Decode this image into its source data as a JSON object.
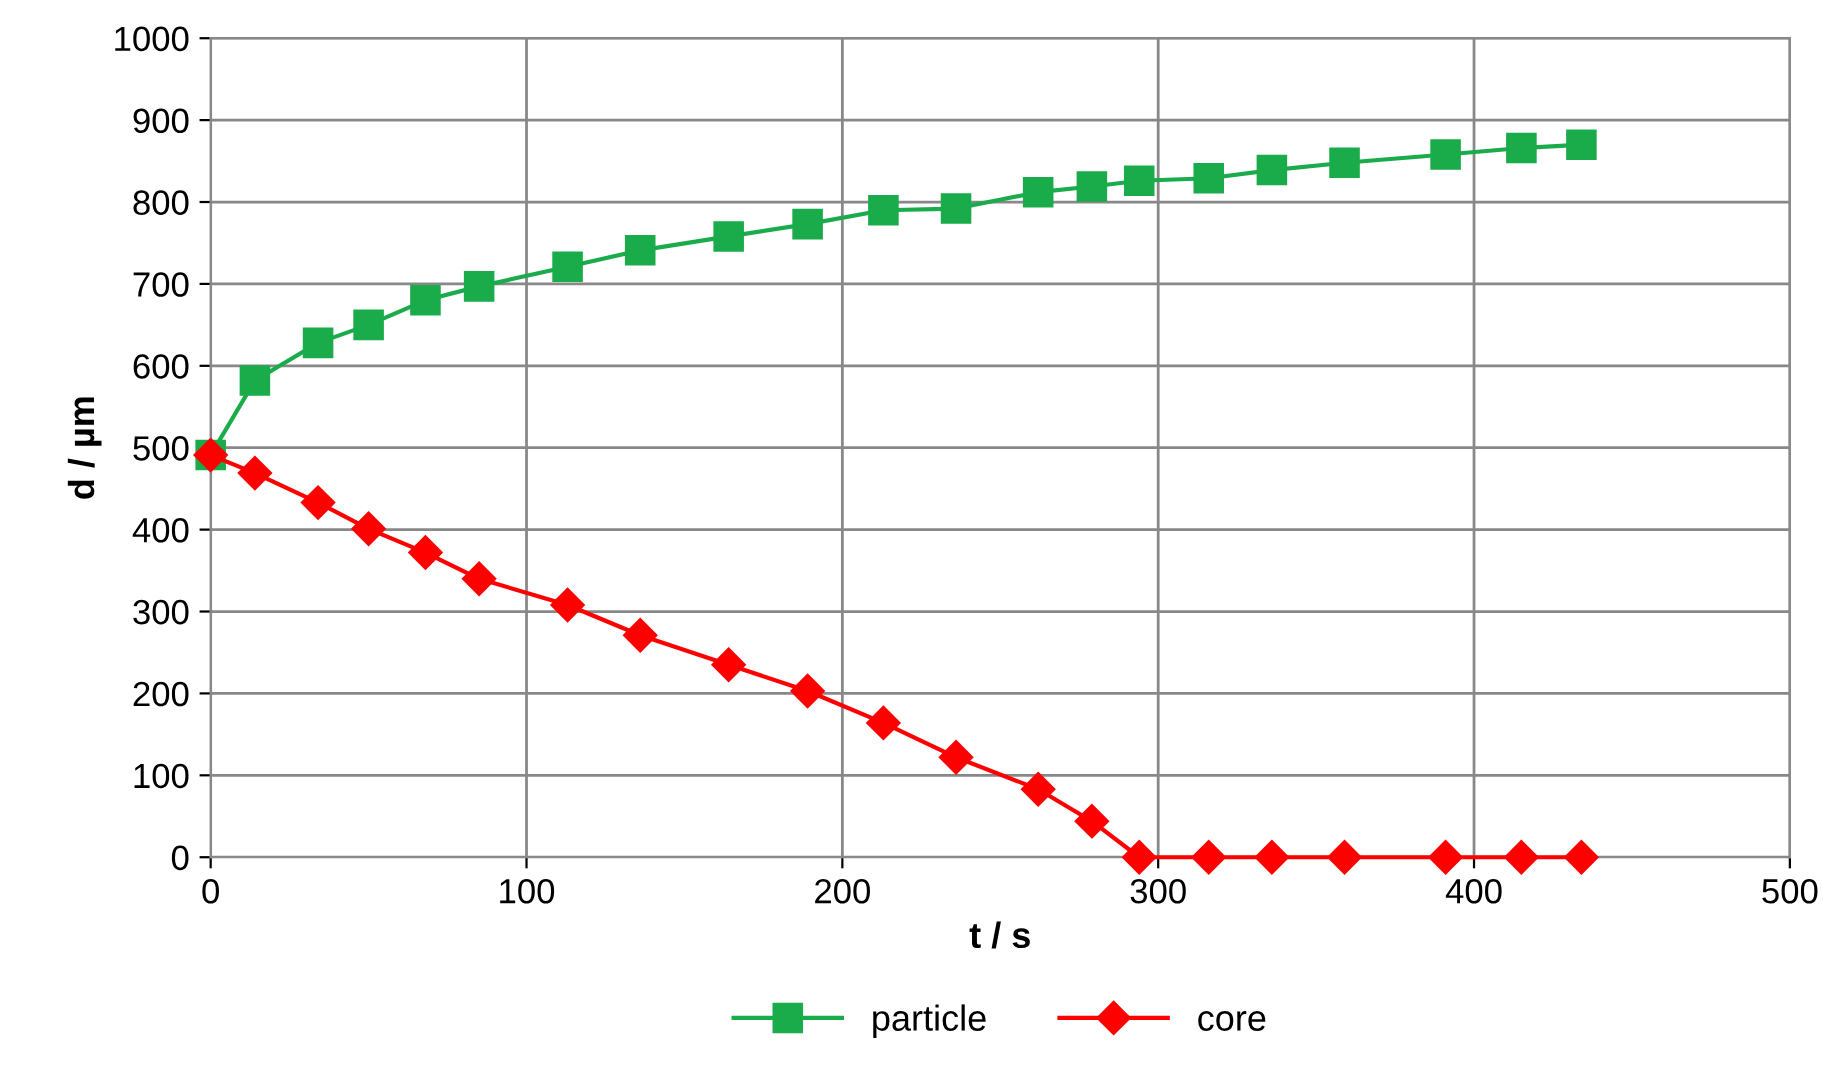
{
  "chart_data": {
    "type": "line",
    "xlabel": "t / s",
    "ylabel": "d / µm",
    "x": [
      0,
      14,
      34,
      50,
      68,
      85,
      113,
      136,
      164,
      189,
      213,
      236,
      262,
      279,
      294,
      316,
      336,
      359,
      391,
      415,
      434
    ],
    "series": [
      {
        "name": "particle",
        "color": "#1aab4b",
        "marker": "square",
        "values": [
          491,
          582,
          628,
          650,
          680,
          697,
          721,
          741,
          758,
          773,
          790,
          792,
          812,
          819,
          826,
          829,
          839,
          848,
          858,
          866,
          870
        ]
      },
      {
        "name": "core",
        "color": "#ff0000",
        "marker": "diamond",
        "values": [
          491,
          469,
          433,
          401,
          372,
          340,
          308,
          271,
          235,
          203,
          164,
          122,
          83,
          44,
          0,
          0,
          0,
          0,
          0,
          0,
          0
        ]
      }
    ],
    "xlim": [
      0,
      500
    ],
    "xticks": [
      0,
      100,
      200,
      300,
      400,
      500
    ],
    "ylim": [
      0,
      1000
    ],
    "yticks": [
      0,
      100,
      200,
      300,
      400,
      500,
      600,
      700,
      800,
      900,
      1000
    ],
    "grid": true,
    "legend": "bottom",
    "line_style": "solid"
  }
}
